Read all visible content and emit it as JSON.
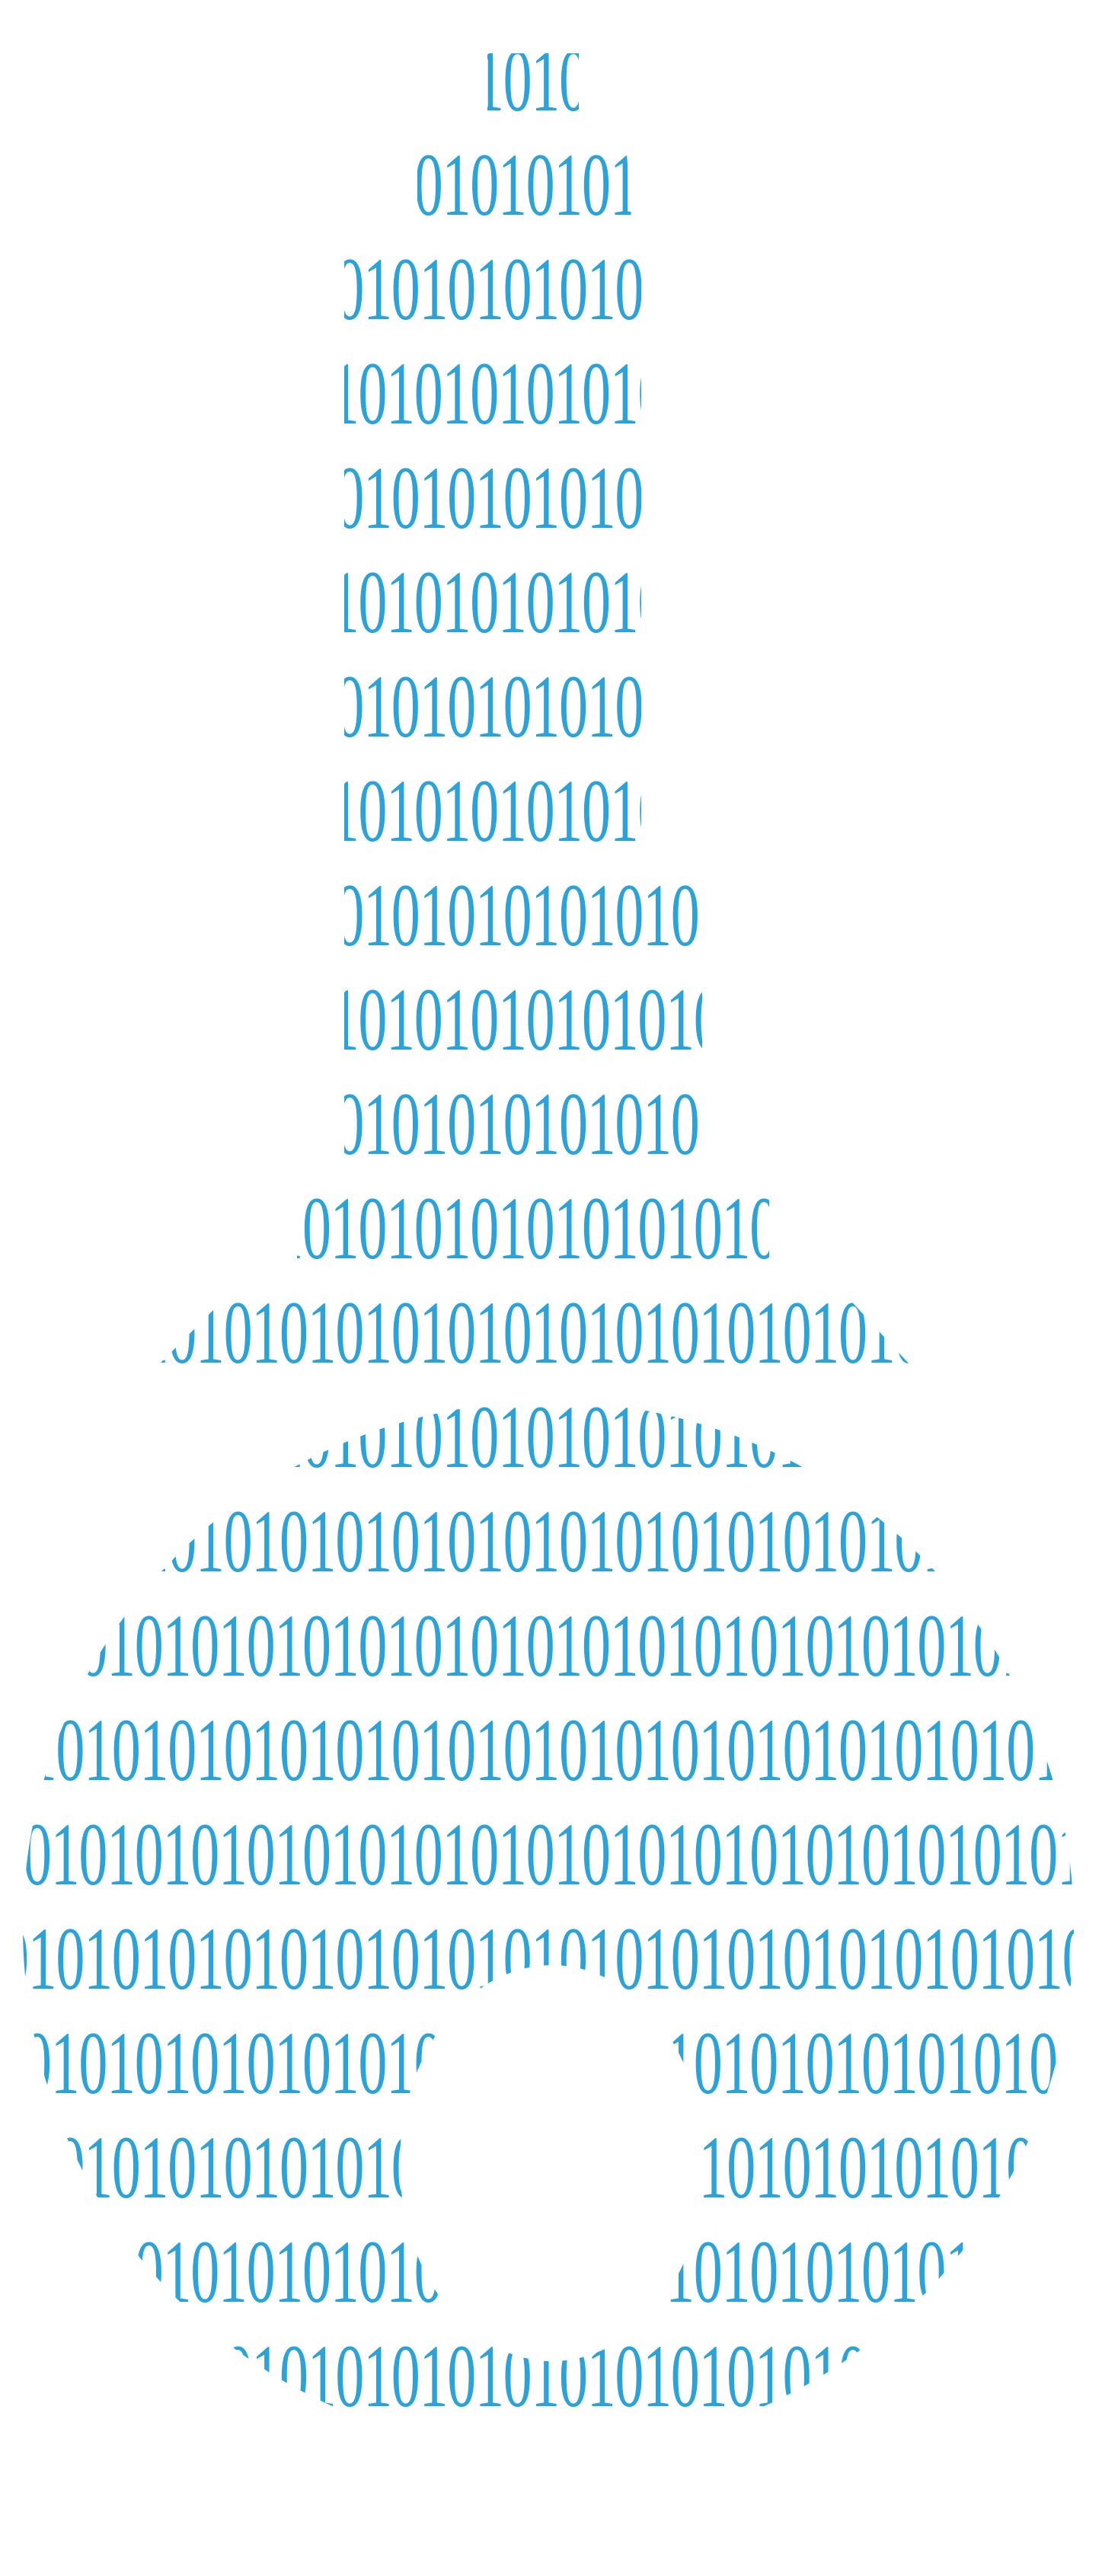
{
  "artwork": {
    "description_text_visible": false,
    "glyph_pattern": "0101010101010101010101010101010101010101",
    "colors": {
      "glyph": "#2BA2D8",
      "background": "#FFFFFF"
    },
    "row_count": 23
  }
}
